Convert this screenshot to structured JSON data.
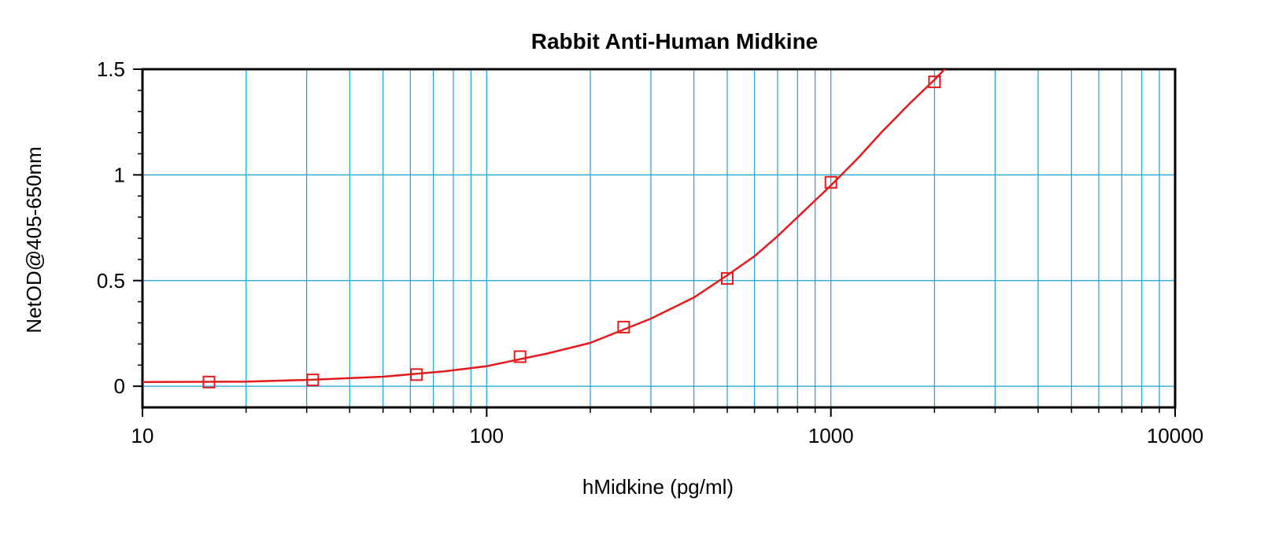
{
  "chart_data": {
    "type": "scatter",
    "title": "Rabbit Anti-Human Midkine",
    "xlabel": "hMidkine (pg/ml)",
    "ylabel": "NetOD@405-650nm",
    "x_scale": "log",
    "xlim": [
      10,
      10000
    ],
    "ylim": [
      -0.1,
      1.5
    ],
    "x_ticks": [
      10,
      100,
      1000,
      10000
    ],
    "x_tick_labels": [
      "10",
      "100",
      "1000",
      "10000"
    ],
    "y_ticks": [
      0,
      0.5,
      1,
      1.5
    ],
    "y_tick_labels": [
      "0",
      "0.5",
      "1",
      "1.5"
    ],
    "grid": true,
    "series": [
      {
        "marker": "square",
        "x": [
          15.6,
          31.25,
          62.5,
          125,
          250,
          500,
          1000,
          2000
        ],
        "y": [
          0.02,
          0.03,
          0.055,
          0.14,
          0.28,
          0.51,
          0.965,
          1.44
        ]
      }
    ],
    "fit_curve": {
      "x": [
        10,
        20,
        30,
        50,
        75,
        100,
        150,
        200,
        300,
        400,
        500,
        600,
        700,
        800,
        1000,
        1200,
        1400,
        1700,
        2000,
        2200
      ],
      "y": [
        0.02,
        0.022,
        0.03,
        0.045,
        0.07,
        0.095,
        0.155,
        0.205,
        0.32,
        0.42,
        0.525,
        0.615,
        0.71,
        0.8,
        0.95,
        1.08,
        1.2,
        1.34,
        1.45,
        1.52
      ]
    },
    "colors": {
      "series": "#e41a1c",
      "grid": "#1e9fdc",
      "axes": "#000000"
    }
  }
}
